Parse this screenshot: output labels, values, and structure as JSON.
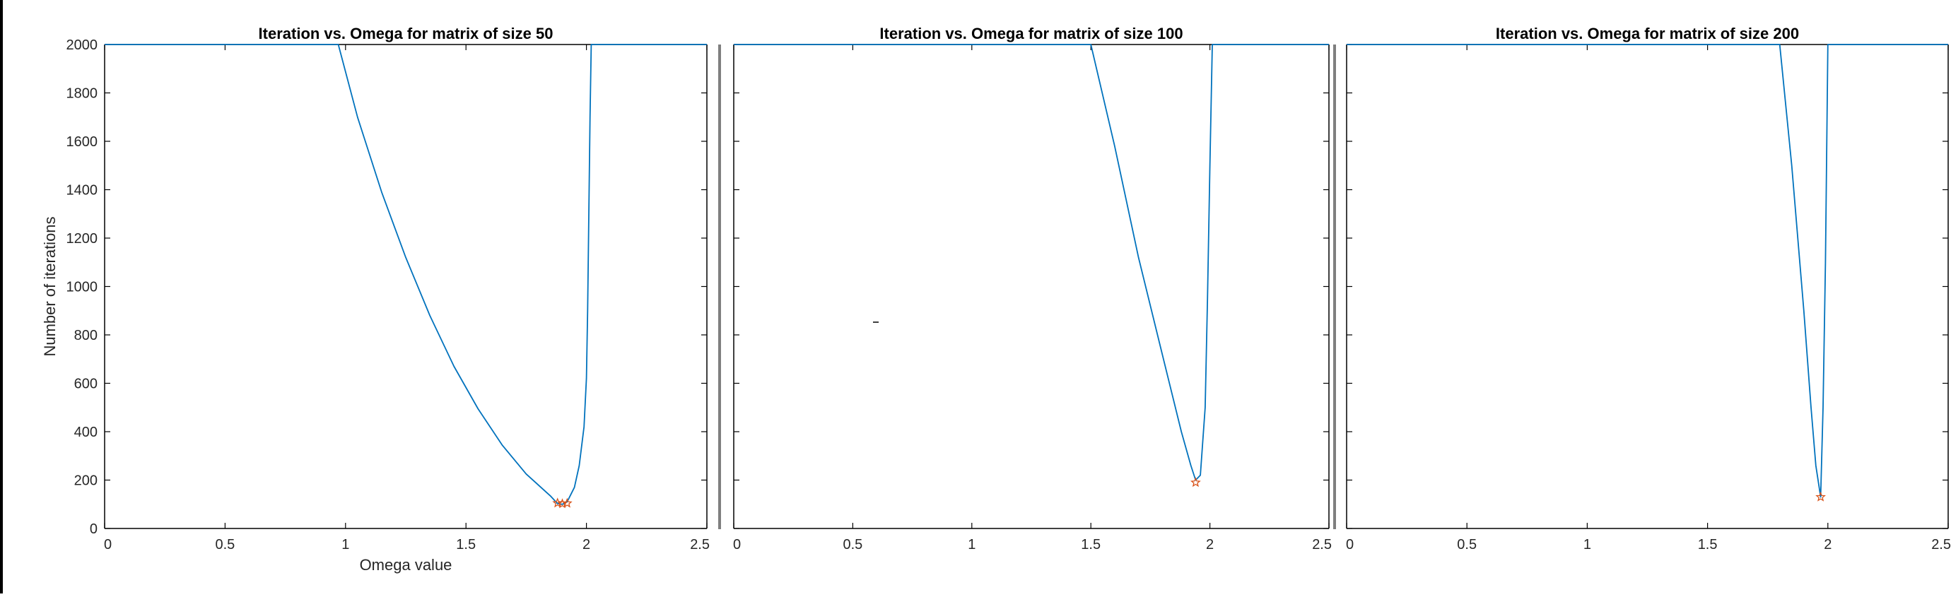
{
  "figure": {
    "bg": "#ffffff"
  },
  "colors": {
    "line": "#0072BD",
    "marker": "#D95319",
    "axis": "#000000",
    "divider": "#7f7f7f"
  },
  "chart_data": [
    {
      "type": "line",
      "title": "Iteration vs. Omega for matrix of size 50",
      "xlabel": "Omega value",
      "ylabel": "Number of iterations",
      "xlim": [
        0,
        2.5
      ],
      "ylim": [
        0,
        2000
      ],
      "xticks": [
        0,
        0.5,
        1,
        1.5,
        2,
        2.5
      ],
      "xtick_labels": [
        "0",
        "0.5",
        "1",
        "1.5",
        "2",
        "2.5"
      ],
      "yticks": [
        0,
        200,
        400,
        600,
        800,
        1000,
        1200,
        1400,
        1600,
        1800,
        2000
      ],
      "ytick_labels": [
        "0",
        "200",
        "400",
        "600",
        "800",
        "1000",
        "1200",
        "1400",
        "1600",
        "1800",
        "2000"
      ],
      "grid": false,
      "series": [
        {
          "x": [
            0,
            0.97,
            1.05,
            1.15,
            1.25,
            1.35,
            1.45,
            1.55,
            1.65,
            1.75,
            1.85,
            1.88,
            1.9,
            1.92,
            1.95,
            1.97,
            1.99,
            2.0,
            2.005,
            2.01,
            2.015,
            2.02,
            2.5
          ],
          "y": [
            2000,
            2000,
            1700,
            1390,
            1120,
            880,
            670,
            495,
            345,
            225,
            135,
            103,
            100,
            110,
            170,
            260,
            420,
            620,
            900,
            1300,
            1700,
            2000,
            2000
          ]
        }
      ],
      "markers": [
        {
          "x": 1.88,
          "y": 105,
          "symbol": "star"
        },
        {
          "x": 1.9,
          "y": 102,
          "symbol": "star"
        },
        {
          "x": 1.92,
          "y": 104,
          "symbol": "star"
        }
      ]
    },
    {
      "type": "line",
      "title": "Iteration vs. Omega for matrix of size 100",
      "xlabel": "",
      "ylabel": "",
      "xlim": [
        0,
        2.5
      ],
      "ylim": [
        0,
        2000
      ],
      "xticks": [
        0,
        0.5,
        1,
        1.5,
        2,
        2.5
      ],
      "xtick_labels": [
        "0",
        "0.5",
        "1",
        "1.5",
        "2",
        "2.5"
      ],
      "yticks": [
        0,
        200,
        400,
        600,
        800,
        1000,
        1200,
        1400,
        1600,
        1800,
        2000
      ],
      "ytick_labels": [],
      "grid": false,
      "series": [
        {
          "x": [
            0,
            1.5,
            1.6,
            1.7,
            1.8,
            1.88,
            1.92,
            1.94,
            1.96,
            1.98,
            1.99,
            2.0,
            2.01,
            2.5
          ],
          "y": [
            2000,
            2000,
            1580,
            1120,
            720,
            400,
            260,
            200,
            220,
            500,
            950,
            1500,
            2000,
            2000
          ]
        }
      ],
      "markers": [
        {
          "x": 1.94,
          "y": 190,
          "symbol": "star"
        }
      ]
    },
    {
      "type": "line",
      "title": "Iteration vs. Omega for matrix of size 200",
      "xlabel": "",
      "ylabel": "",
      "xlim": [
        0,
        2.5
      ],
      "ylim": [
        0,
        2000
      ],
      "xticks": [
        0,
        0.5,
        1,
        1.5,
        2,
        2.5
      ],
      "xtick_labels": [
        "0",
        "0.5",
        "1",
        "1.5",
        "2",
        "2.5"
      ],
      "yticks": [
        0,
        200,
        400,
        600,
        800,
        1000,
        1200,
        1400,
        1600,
        1800,
        2000
      ],
      "ytick_labels": [],
      "grid": false,
      "series": [
        {
          "x": [
            0,
            1.8,
            1.85,
            1.9,
            1.93,
            1.95,
            1.97,
            1.98,
            1.99,
            2.0,
            2.5
          ],
          "y": [
            2000,
            2000,
            1500,
            900,
            500,
            260,
            130,
            500,
            1100,
            2000,
            2000
          ]
        }
      ],
      "markers": [
        {
          "x": 1.97,
          "y": 130,
          "symbol": "star"
        }
      ]
    }
  ]
}
